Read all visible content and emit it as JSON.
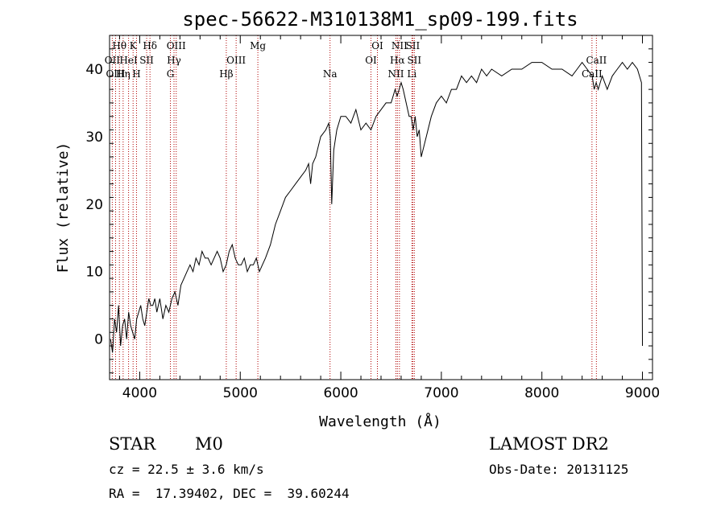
{
  "chart_data": {
    "type": "line",
    "title": "spec-56622-M310138M1_sp09-199.fits",
    "xlabel": "Wavelength (Å)",
    "ylabel": "Flux (relative)",
    "xlim": [
      3700,
      9100
    ],
    "ylim": [
      -6,
      45
    ],
    "xticks": [
      4000,
      5000,
      6000,
      7000,
      8000,
      9000
    ],
    "yticks": [
      0,
      10,
      20,
      30,
      40
    ],
    "grid": false,
    "series": [
      {
        "x": [
          3710,
          3730,
          3750,
          3770,
          3790,
          3810,
          3830,
          3850,
          3870,
          3890,
          3910,
          3930,
          3950,
          3970,
          3990,
          4010,
          4030,
          4050,
          4070,
          4090,
          4110,
          4130,
          4150,
          4170,
          4200,
          4230,
          4260,
          4290,
          4320,
          4350,
          4380,
          4410,
          4440,
          4470,
          4500,
          4530,
          4560,
          4590,
          4620,
          4650,
          4680,
          4710,
          4740,
          4770,
          4800,
          4830,
          4860,
          4890,
          4920,
          4950,
          4980,
          5010,
          5040,
          5070,
          5100,
          5130,
          5160,
          5190,
          5220,
          5250,
          5300,
          5350,
          5400,
          5450,
          5500,
          5550,
          5600,
          5650,
          5680,
          5700,
          5720,
          5750,
          5800,
          5850,
          5880,
          5895,
          5910,
          5930,
          5960,
          6000,
          6050,
          6100,
          6150,
          6200,
          6250,
          6300,
          6350,
          6400,
          6450,
          6500,
          6540,
          6560,
          6580,
          6600,
          6620,
          6650,
          6680,
          6700,
          6720,
          6740,
          6760,
          6780,
          6800,
          6850,
          6900,
          6950,
          7000,
          7050,
          7100,
          7150,
          7200,
          7250,
          7300,
          7350,
          7400,
          7450,
          7500,
          7600,
          7700,
          7800,
          7900,
          8000,
          8100,
          8200,
          8300,
          8350,
          8400,
          8450,
          8500,
          8520,
          8540,
          8560,
          8600,
          8650,
          8700,
          8750,
          8800,
          8850,
          8900,
          8950,
          8990,
          9000
        ],
        "y": [
          0,
          -2,
          3,
          1,
          5,
          -1,
          2,
          3,
          0,
          4,
          2,
          1,
          0,
          3,
          4,
          5,
          3,
          2,
          4,
          6,
          5,
          5,
          6,
          4,
          6,
          3,
          5,
          4,
          6,
          7,
          5,
          8,
          9,
          10,
          11,
          10,
          12,
          11,
          13,
          12,
          12,
          11,
          12,
          13,
          12,
          10,
          11,
          13,
          14,
          12,
          11,
          11,
          12,
          10,
          11,
          11,
          12,
          10,
          11,
          12,
          14,
          17,
          19,
          21,
          22,
          23,
          24,
          25,
          26,
          23,
          26,
          27,
          30,
          31,
          32,
          30,
          20,
          28,
          31,
          33,
          33,
          32,
          34,
          31,
          32,
          31,
          33,
          34,
          35,
          35,
          37,
          36,
          37,
          38,
          37,
          35,
          33,
          33,
          31,
          33,
          30,
          31,
          27,
          30,
          33,
          35,
          36,
          35,
          37,
          37,
          39,
          38,
          39,
          38,
          40,
          39,
          40,
          39,
          40,
          40,
          41,
          41,
          40,
          40,
          39,
          40,
          41,
          40,
          39,
          37,
          38,
          37,
          39,
          37,
          39,
          40,
          41,
          40,
          41,
          40,
          38,
          -1
        ]
      }
    ],
    "lines": [
      {
        "label": "Hθ",
        "wave": 3798,
        "row": 0
      },
      {
        "label": "OII",
        "wave": 3727,
        "row": 1
      },
      {
        "label": "OIII",
        "wave": 3760,
        "row": 2
      },
      {
        "label": "K",
        "wave": 3934,
        "row": 0
      },
      {
        "label": "HeI",
        "wave": 3889,
        "row": 1
      },
      {
        "label": "Hη",
        "wave": 3835,
        "row": 2
      },
      {
        "label": "SII",
        "wave": 4069,
        "row": 1
      },
      {
        "label": "H",
        "wave": 3968,
        "row": 2
      },
      {
        "label": "Hδ",
        "wave": 4102,
        "row": 0
      },
      {
        "label": "OIII",
        "wave": 4363,
        "row": 0
      },
      {
        "label": "Hγ",
        "wave": 4341,
        "row": 1
      },
      {
        "label": "G",
        "wave": 4305,
        "row": 2
      },
      {
        "label": "Mg",
        "wave": 5175,
        "row": 0
      },
      {
        "label": "OIII",
        "wave": 4959,
        "row": 1
      },
      {
        "label": "Hβ",
        "wave": 4861,
        "row": 2
      },
      {
        "label": "Na",
        "wave": 5893,
        "row": 2
      },
      {
        "label": "OI",
        "wave": 6364,
        "row": 0
      },
      {
        "label": "OI",
        "wave": 6300,
        "row": 1
      },
      {
        "label": "NII",
        "wave": 6583,
        "row": 0
      },
      {
        "label": "SII",
        "wave": 6716,
        "row": 0
      },
      {
        "label": "Hα",
        "wave": 6563,
        "row": 1
      },
      {
        "label": "SII",
        "wave": 6731,
        "row": 1
      },
      {
        "label": "NII",
        "wave": 6548,
        "row": 2
      },
      {
        "label": "Li",
        "wave": 6707,
        "row": 2
      },
      {
        "label": "CaII",
        "wave": 8542,
        "row": 1
      },
      {
        "label": "CaII",
        "wave": 8498,
        "row": 2
      }
    ]
  },
  "info": {
    "class": "STAR",
    "subclass": "M0",
    "survey": "LAMOST DR2",
    "cz": "cz = 22.5 ± 3.6 km/s",
    "obs_date": "Obs-Date: 20131125",
    "radec": "RA =  17.39402, DEC =  39.60244"
  }
}
